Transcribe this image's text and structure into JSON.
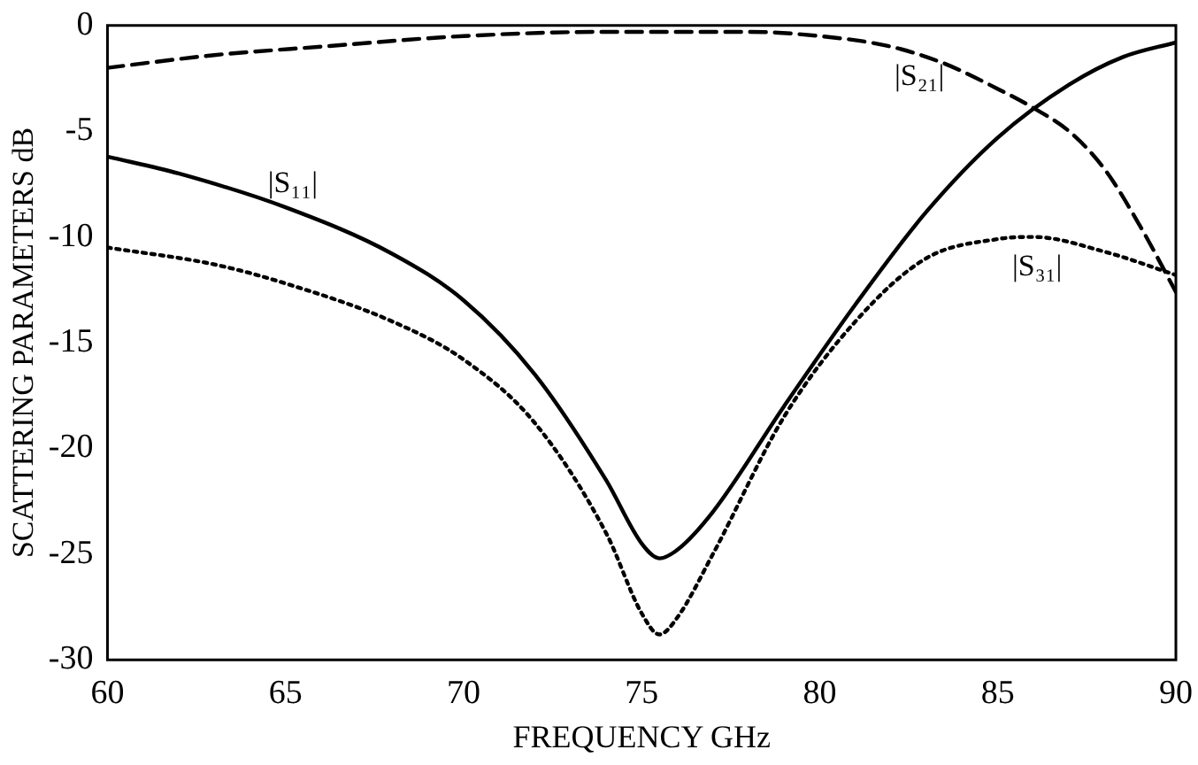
{
  "chart_data": {
    "type": "line",
    "xlabel": "FREQUENCY GHz",
    "ylabel": "SCATTERING PARAMETERS dB",
    "xlim": [
      60,
      90
    ],
    "ylim": [
      -30,
      0
    ],
    "xticks": [
      60,
      65,
      70,
      75,
      80,
      85,
      90
    ],
    "yticks": [
      -30,
      -25,
      -20,
      -15,
      -10,
      -5,
      0
    ],
    "grid": false,
    "legend": false,
    "marker": "none",
    "series": [
      {
        "color": "#000000",
        "line_style": "solid",
        "x": [
          60,
          62,
          65,
          68,
          70,
          72,
          74,
          75,
          75.5,
          76,
          77,
          79,
          81,
          83,
          85,
          87,
          88.5,
          90
        ],
        "values": [
          -6.2,
          -7,
          -8.6,
          -10.8,
          -13,
          -16.5,
          -21.5,
          -24.5,
          -25.2,
          -24.8,
          -23,
          -18,
          -13.2,
          -8.8,
          -5.3,
          -2.8,
          -1.5,
          -0.8
        ]
      },
      {
        "color": "#000000",
        "line_style": "dashed",
        "x": [
          60,
          63,
          66,
          70,
          74,
          78,
          80,
          82,
          83.5,
          85,
          86,
          87,
          88,
          89,
          90
        ],
        "values": [
          -2,
          -1.4,
          -1,
          -0.5,
          -0.3,
          -0.3,
          -0.5,
          -1,
          -1.8,
          -3,
          -3.9,
          -5,
          -6.8,
          -9.5,
          -12.6
        ]
      },
      {
        "color": "#000000",
        "line_style": "dotted",
        "x": [
          60,
          63,
          65,
          68,
          70,
          72,
          74,
          75,
          75.5,
          76,
          77,
          79,
          81,
          83,
          85,
          86,
          88,
          90
        ],
        "values": [
          -10.5,
          -11.3,
          -12.2,
          -14,
          -15.8,
          -18.8,
          -24,
          -27.8,
          -28.8,
          -28,
          -25,
          -18.5,
          -14,
          -11,
          -10.1,
          -10,
          -10.7,
          -11.8
        ]
      }
    ],
    "annotations": [
      {
        "text": "|S₂₁|",
        "x": 82,
        "y": -1
      },
      {
        "text": "|S₁₁|",
        "x": 65,
        "y": -8.6
      },
      {
        "text": "|S₃₁|",
        "x": 86,
        "y": -10
      }
    ]
  }
}
